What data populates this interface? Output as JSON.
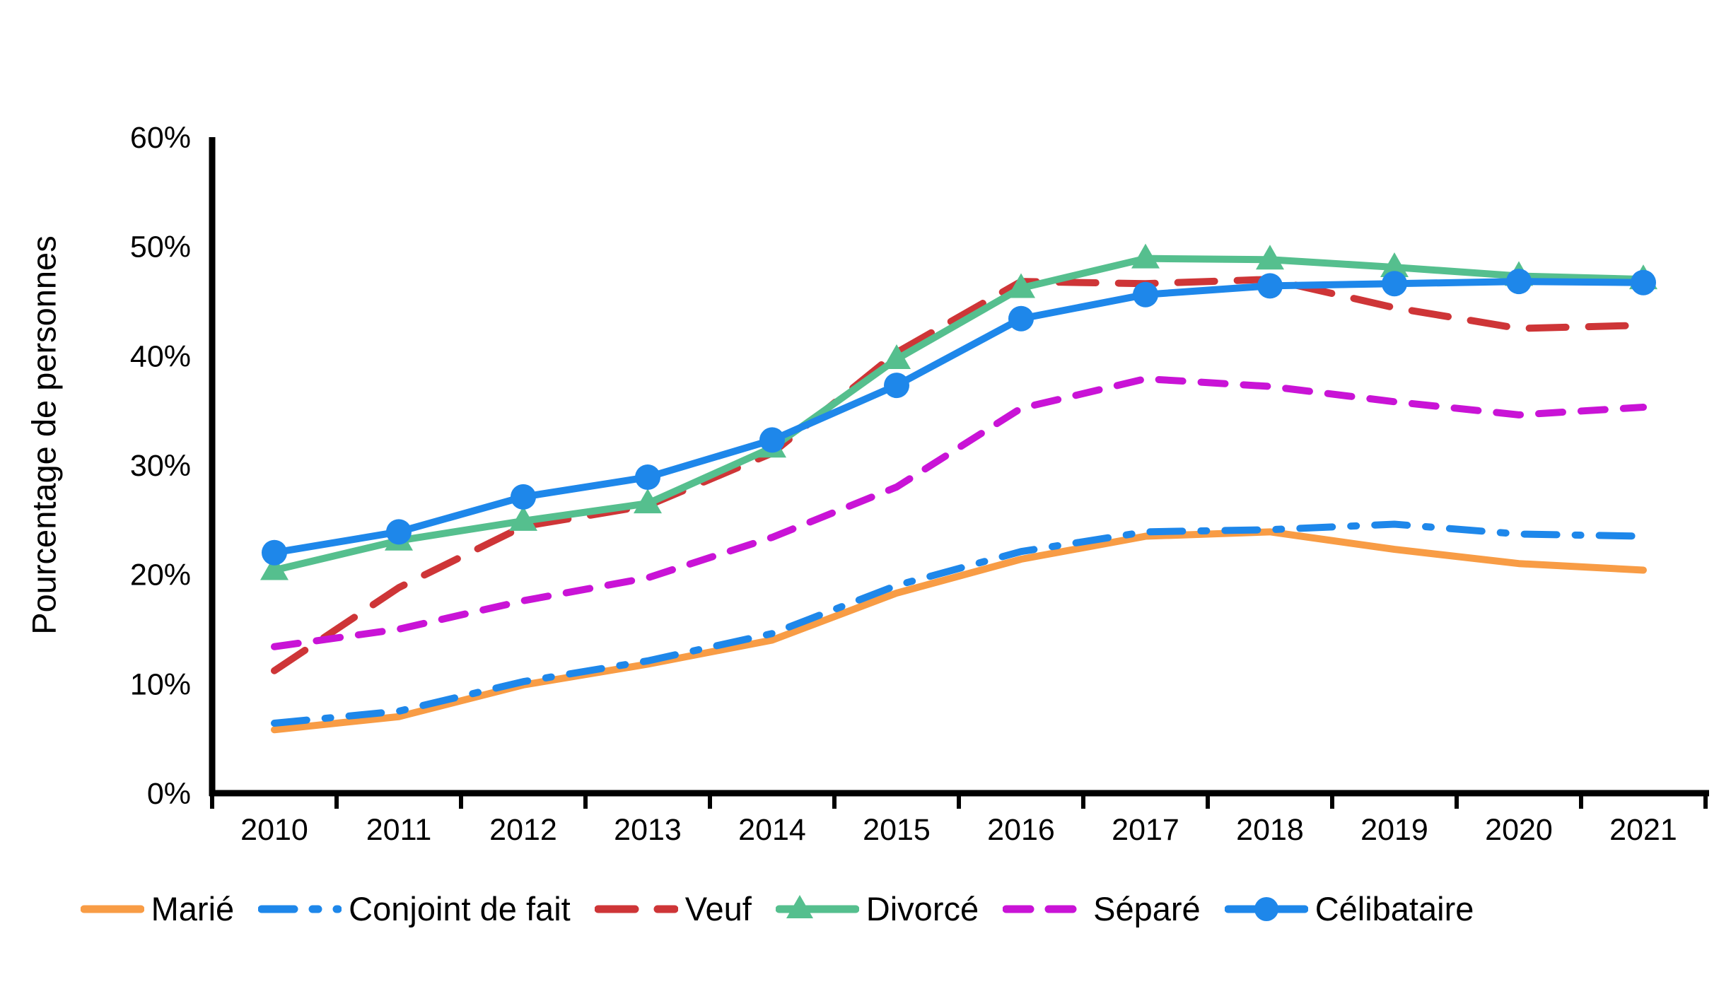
{
  "chart_data": {
    "type": "line",
    "title": "",
    "xlabel": "",
    "ylabel": "Pourcentage de personnes",
    "categories": [
      "2010",
      "2011",
      "2012",
      "2013",
      "2014",
      "2015",
      "2016",
      "2017",
      "2018",
      "2019",
      "2020",
      "2021"
    ],
    "y_tick_labels": [
      "0%",
      "10%",
      "20%",
      "30%",
      "40%",
      "50%",
      "60%"
    ],
    "ylim": [
      0,
      60
    ],
    "grid": false,
    "legend_position": "bottom",
    "axis_color": "#000000",
    "series": [
      {
        "name": "Marié",
        "color": "#F89C45",
        "style": "solid",
        "marker": "none",
        "values": [
          5.8,
          7.0,
          9.9,
          11.8,
          14.0,
          18.3,
          21.4,
          23.5,
          23.9,
          22.3,
          21.0,
          20.4
        ]
      },
      {
        "name": "Conjoint de fait",
        "color": "#1E87EA",
        "style": "dashdot",
        "marker": "none",
        "values": [
          6.4,
          7.5,
          10.2,
          12.1,
          14.6,
          19.0,
          22.1,
          23.9,
          24.1,
          24.6,
          23.7,
          23.5
        ]
      },
      {
        "name": "Veuf",
        "color": "#CE3537",
        "style": "dashed",
        "marker": "none",
        "values": [
          11.2,
          18.8,
          24.4,
          26.3,
          31.1,
          40.3,
          46.8,
          46.6,
          47.0,
          44.4,
          42.5,
          42.8
        ]
      },
      {
        "name": "Divorcé",
        "color": "#55BF8E",
        "style": "solid",
        "marker": "triangle",
        "values": [
          20.4,
          23.1,
          24.9,
          26.5,
          31.6,
          39.7,
          46.2,
          48.9,
          48.8,
          48.1,
          47.3,
          47.0
        ]
      },
      {
        "name": "Séparé",
        "color": "#C913D6",
        "style": "dashed-short",
        "marker": "none",
        "values": [
          13.4,
          15.0,
          17.6,
          19.7,
          23.4,
          28.0,
          35.2,
          37.9,
          37.2,
          35.8,
          34.6,
          35.3
        ]
      },
      {
        "name": "Célibataire",
        "color": "#1E87EA",
        "style": "solid",
        "marker": "circle",
        "values": [
          22.0,
          23.9,
          27.1,
          28.9,
          32.3,
          37.3,
          43.4,
          45.6,
          46.4,
          46.6,
          46.8,
          46.7
        ]
      }
    ]
  }
}
